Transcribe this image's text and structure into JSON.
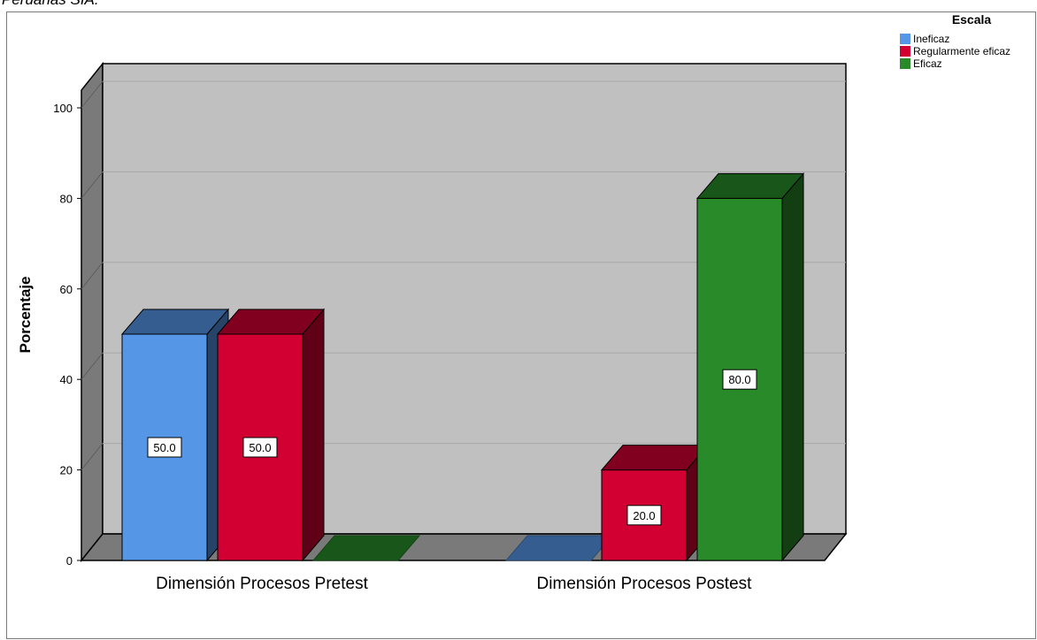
{
  "caption": "Peruanas SIA.",
  "chart_data": {
    "type": "bar",
    "style": "3d-clustered",
    "ylabel": "Porcentaje",
    "xlabel": "",
    "ylim": [
      0,
      100
    ],
    "yticks": [
      0,
      20,
      40,
      60,
      80,
      100
    ],
    "grid": true,
    "categories": [
      "Dimensión Procesos Pretest",
      "Dimensión Procesos Postest"
    ],
    "legend": {
      "title": "Escala",
      "position": "top-right"
    },
    "series": [
      {
        "name": "Ineficaz",
        "color": "#5596e6",
        "values": [
          50.0,
          0.0
        ],
        "labels": [
          "50.0",
          null
        ]
      },
      {
        "name": "Regularmente eficaz",
        "color": "#d20032",
        "values": [
          50.0,
          20.0
        ],
        "labels": [
          "50.0",
          "20.0"
        ]
      },
      {
        "name": "Eficaz",
        "color": "#288a28",
        "values": [
          0.0,
          80.0
        ],
        "labels": [
          null,
          "80.0"
        ]
      }
    ]
  }
}
